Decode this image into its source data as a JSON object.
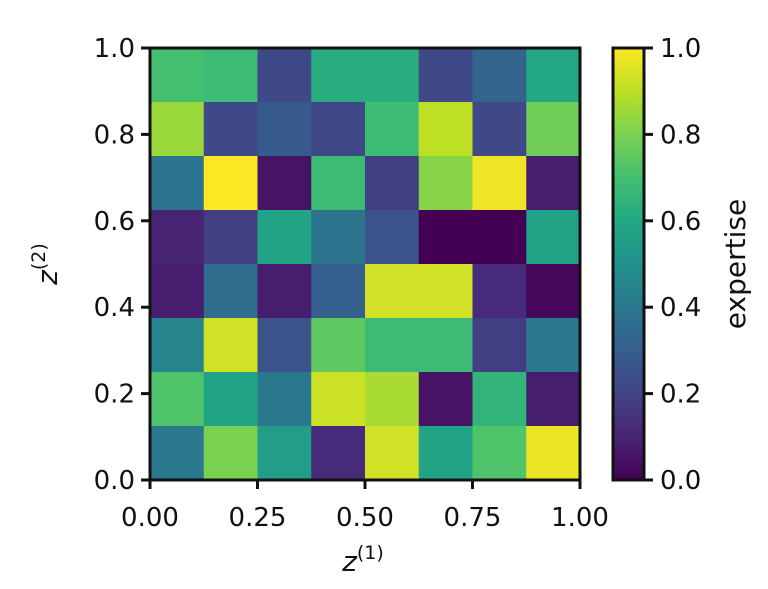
{
  "chart_data": {
    "type": "heatmap",
    "title": "",
    "x_ticks": [
      "0.00",
      "0.25",
      "0.50",
      "0.75",
      "1.00"
    ],
    "y_ticks": [
      "0.0",
      "0.2",
      "0.4",
      "0.6",
      "0.8",
      "1.0"
    ],
    "xlim": [
      0,
      1
    ],
    "ylim": [
      0,
      1
    ],
    "xlabel": {
      "base": "z",
      "sup": "(1)"
    },
    "ylabel": {
      "base": "z",
      "sup": "(2)"
    },
    "colorbar": {
      "label": "expertise",
      "range": [
        0,
        1
      ],
      "ticks": [
        "0.0",
        "0.2",
        "0.4",
        "0.6",
        "0.8",
        "1.0"
      ],
      "colormap": "viridis"
    },
    "grid": false,
    "n_cols": 8,
    "n_rows": 8,
    "rows_top_to_bottom": [
      [
        0.7,
        0.68,
        0.22,
        0.62,
        0.62,
        0.22,
        0.32,
        0.6
      ],
      [
        0.85,
        0.22,
        0.28,
        0.22,
        0.68,
        0.9,
        0.22,
        0.78
      ],
      [
        0.38,
        1.0,
        0.05,
        0.68,
        0.18,
        0.82,
        0.98,
        0.08
      ],
      [
        0.1,
        0.18,
        0.58,
        0.38,
        0.25,
        0.0,
        0.0,
        0.58
      ],
      [
        0.08,
        0.35,
        0.08,
        0.3,
        0.93,
        0.93,
        0.12,
        0.02
      ],
      [
        0.45,
        0.93,
        0.25,
        0.75,
        0.68,
        0.68,
        0.18,
        0.4
      ],
      [
        0.72,
        0.58,
        0.4,
        0.92,
        0.87,
        0.05,
        0.65,
        0.08
      ],
      [
        0.4,
        0.8,
        0.55,
        0.12,
        0.93,
        0.58,
        0.72,
        0.97
      ]
    ]
  }
}
